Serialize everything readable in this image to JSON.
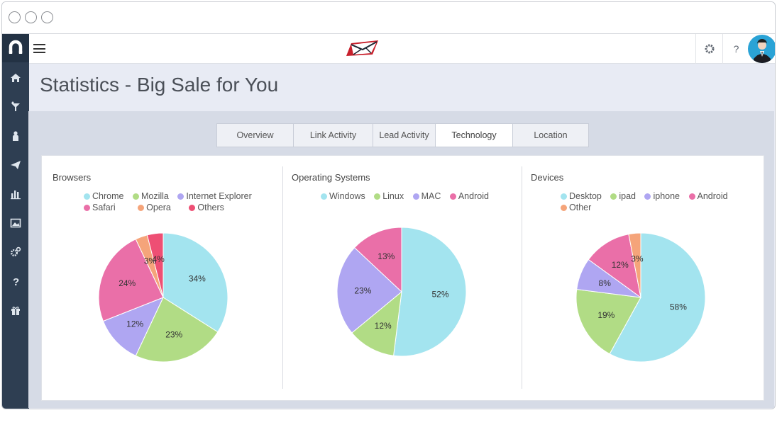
{
  "header": {
    "title": "Statistics - Big Sale for You"
  },
  "tabs": [
    {
      "label": "Overview",
      "active": false
    },
    {
      "label": "Link Activity",
      "active": false
    },
    {
      "label": "Lead Activity",
      "active": false
    },
    {
      "label": "Technology",
      "active": true
    },
    {
      "label": "Location",
      "active": false
    }
  ],
  "sidebar": {
    "icons": [
      "home-icon",
      "funnel-icon",
      "contacts-icon",
      "send-icon",
      "bar-chart-icon",
      "image-icon",
      "settings-icon",
      "help-icon",
      "gift-icon"
    ]
  },
  "topbar": {
    "settings_icon": "gear-icon",
    "help_label": "?",
    "brand_icon": "envelope-logo"
  },
  "charts": [
    {
      "title": "Browsers",
      "slices": [
        {
          "label": "Chrome",
          "value": 34,
          "color": "#a3e4ef"
        },
        {
          "label": "Mozilla",
          "value": 23,
          "color": "#b1dc85"
        },
        {
          "label": "Internet Explorer",
          "value": 12,
          "color": "#afa6f2"
        },
        {
          "label": "Safari",
          "value": 24,
          "color": "#ea6fa8"
        },
        {
          "label": "Opera",
          "value": 3,
          "color": "#f5a47a"
        },
        {
          "label": "Others",
          "value": 4,
          "color": "#ee4f74"
        }
      ]
    },
    {
      "title": "Operating Systems",
      "slices": [
        {
          "label": "Windows",
          "value": 52,
          "color": "#a3e4ef"
        },
        {
          "label": "Linux",
          "value": 12,
          "color": "#b1dc85"
        },
        {
          "label": "MAC",
          "value": 23,
          "color": "#afa6f2"
        },
        {
          "label": "Android",
          "value": 13,
          "color": "#ea6fa8"
        }
      ]
    },
    {
      "title": "Devices",
      "slices": [
        {
          "label": "Desktop",
          "value": 58,
          "color": "#a3e4ef"
        },
        {
          "label": "ipad",
          "value": 19,
          "color": "#b1dc85"
        },
        {
          "label": "iphone",
          "value": 8,
          "color": "#afa6f2"
        },
        {
          "label": "Android",
          "value": 12,
          "color": "#ea6fa8"
        },
        {
          "label": "Other",
          "value": 3,
          "color": "#f5a47a"
        }
      ]
    }
  ],
  "chart_data": [
    {
      "type": "pie",
      "title": "Browsers",
      "categories": [
        "Chrome",
        "Mozilla",
        "Internet Explorer",
        "Safari",
        "Opera",
        "Others"
      ],
      "values": [
        34,
        23,
        12,
        24,
        3,
        4
      ]
    },
    {
      "type": "pie",
      "title": "Operating Systems",
      "categories": [
        "Windows",
        "Linux",
        "MAC",
        "Android"
      ],
      "values": [
        52,
        12,
        23,
        13
      ]
    },
    {
      "type": "pie",
      "title": "Devices",
      "categories": [
        "Desktop",
        "ipad",
        "iphone",
        "Android",
        "Other"
      ],
      "values": [
        58,
        19,
        8,
        12,
        3
      ]
    }
  ]
}
